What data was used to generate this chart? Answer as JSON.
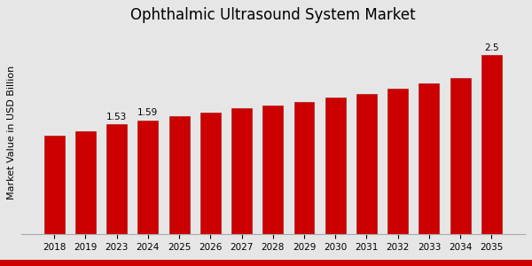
{
  "title": "Ophthalmic Ultrasound System Market",
  "ylabel": "Market Value in USD Billion",
  "categories": [
    "2018",
    "2019",
    "2023",
    "2024",
    "2025",
    "2026",
    "2027",
    "2028",
    "2029",
    "2030",
    "2031",
    "2032",
    "2033",
    "2034",
    "2035"
  ],
  "values": [
    1.38,
    1.44,
    1.53,
    1.59,
    1.65,
    1.7,
    1.76,
    1.79,
    1.84,
    1.9,
    1.95,
    2.03,
    2.1,
    2.18,
    2.5
  ],
  "bar_color": "#cc0000",
  "bar_edge_color": "#aa0000",
  "label_values": {
    "2023": "1.53",
    "2024": "1.59",
    "2035": "2.5"
  },
  "background_color": "#e6e6e6",
  "title_fontsize": 12,
  "ylabel_fontsize": 8,
  "tick_fontsize": 7.5,
  "ylim": [
    0,
    2.85
  ],
  "bottom_bar_color": "#cc0000",
  "bottom_bar_height": 0.025
}
